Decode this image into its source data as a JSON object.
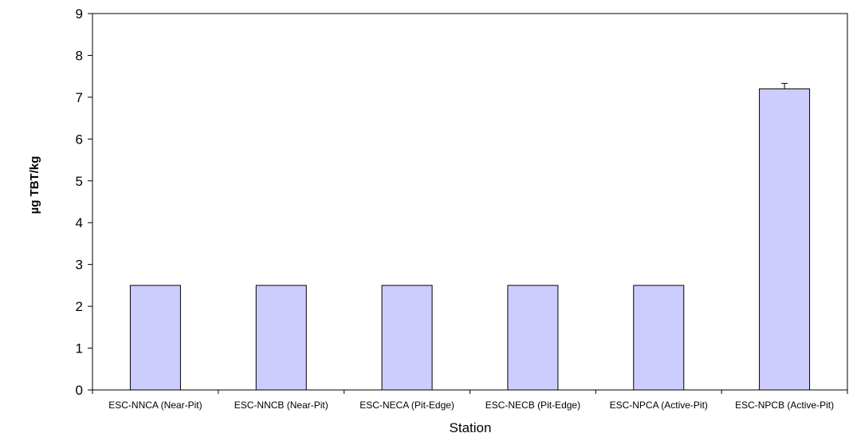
{
  "chart_data": {
    "type": "bar",
    "xlabel": "Station",
    "ylabel": "µg TBT/kg",
    "ylim": [
      0,
      9
    ],
    "yticks": [
      0,
      1,
      2,
      3,
      4,
      5,
      6,
      7,
      8,
      9
    ],
    "grid": false,
    "categories": [
      "ESC-NNCA (Near-Pit)",
      "ESC-NNCB (Near-Pit)",
      "ESC-NECA (Pit-Edge)",
      "ESC-NECB (Pit-Edge)",
      "ESC-NPCA (Active-Pit)",
      "ESC-NPCB (Active-Pit)"
    ],
    "values": [
      2.5,
      2.5,
      2.5,
      2.5,
      2.5,
      7.2
    ],
    "error_upper": [
      null,
      null,
      null,
      null,
      null,
      0.13
    ],
    "colors": {
      "bar_fill": "#ccccff",
      "bar_stroke": "#000000",
      "axis": "#000000"
    }
  }
}
